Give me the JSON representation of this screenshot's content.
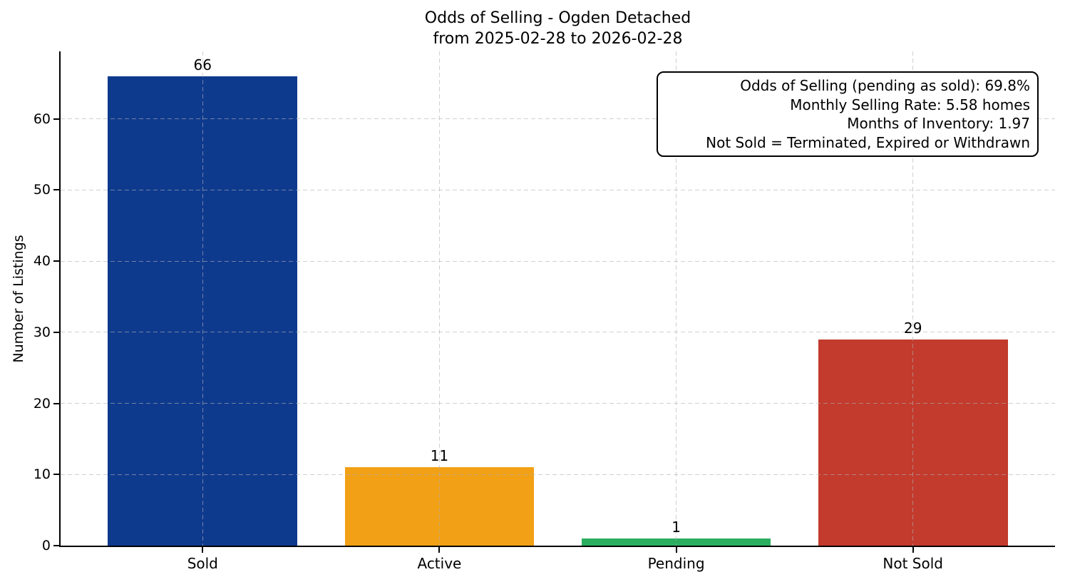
{
  "title": {
    "line1": "Odds of Selling - Ogden Detached",
    "line2": "from 2025-02-28 to 2026-02-28"
  },
  "chart_data": {
    "type": "bar",
    "title": "Odds of Selling - Ogden Detached\nfrom 2025-02-28 to 2026-02-28",
    "categories": [
      "Sold",
      "Active",
      "Pending",
      "Not Sold"
    ],
    "values": [
      66,
      11,
      1,
      29
    ],
    "bar_value_labels": [
      "66",
      "11",
      "1",
      "29"
    ],
    "bar_colors": [
      "#0e3a8e",
      "#f2a016",
      "#2bae60",
      "#c23b2d"
    ],
    "xlabel": "",
    "ylabel": "Number of Listings",
    "ylim": [
      0,
      69.5
    ],
    "yticks": [
      0,
      10,
      20,
      30,
      40,
      50,
      60
    ],
    "grid": {
      "horizontal": true,
      "vertical": true,
      "style": "dashed",
      "color": "#b0b0b0",
      "drawn_over_bars": true
    },
    "legend": null,
    "annotations": [
      "Odds of Selling (pending as sold): 69.8%",
      "Monthly Selling Rate: 5.58 homes",
      "Months of Inventory: 1.97",
      "Not Sold = Terminated, Expired or Withdrawn"
    ],
    "annotation_position": "top-right"
  },
  "colors": {
    "background": "#ffffff",
    "axis": "#000000",
    "text": "#000000",
    "grid": "#b0b0b0",
    "annotation_border": "#000000",
    "annotation_background": "#ffffff"
  }
}
